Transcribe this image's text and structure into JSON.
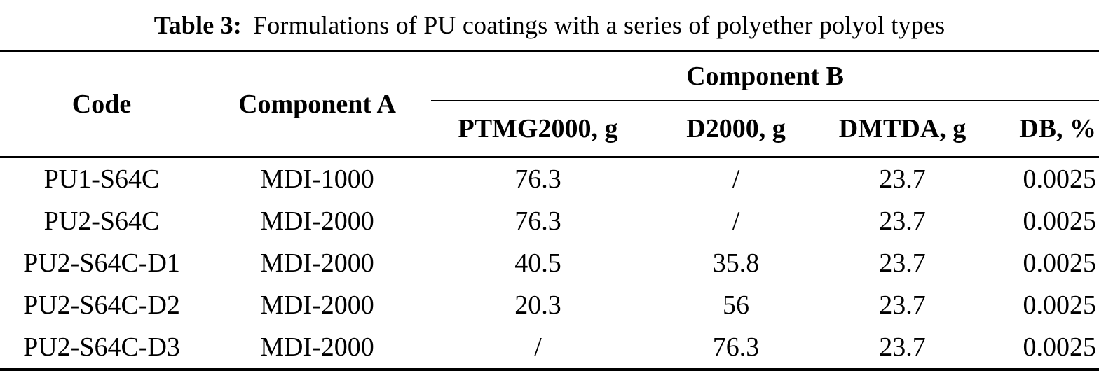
{
  "title": {
    "label": "Table 3:",
    "text": "Formulations of PU coatings with a series of polyether polyol types"
  },
  "table": {
    "headers": {
      "code": "Code",
      "component_a": "Component A",
      "component_b": "Component B"
    },
    "component_b_columns": [
      "PTMG2000, g",
      "D2000, g",
      "DMTDA, g",
      "DB, %"
    ],
    "rows": [
      [
        "PU1-S64C",
        "MDI-1000",
        "76.3",
        "/",
        "23.7",
        "0.0025"
      ],
      [
        "PU2-S64C",
        "MDI-2000",
        "76.3",
        "/",
        "23.7",
        "0.0025"
      ],
      [
        "PU2-S64C-D1",
        "MDI-2000",
        "40.5",
        "35.8",
        "23.7",
        "0.0025"
      ],
      [
        "PU2-S64C-D2",
        "MDI-2000",
        "20.3",
        "56",
        "23.7",
        "0.0025"
      ],
      [
        "PU2-S64C-D3",
        "MDI-2000",
        "/",
        "76.3",
        "23.7",
        "0.0025"
      ]
    ]
  },
  "colors": {
    "background": "#ffffff",
    "text": "#000000",
    "rule": "#000000"
  }
}
